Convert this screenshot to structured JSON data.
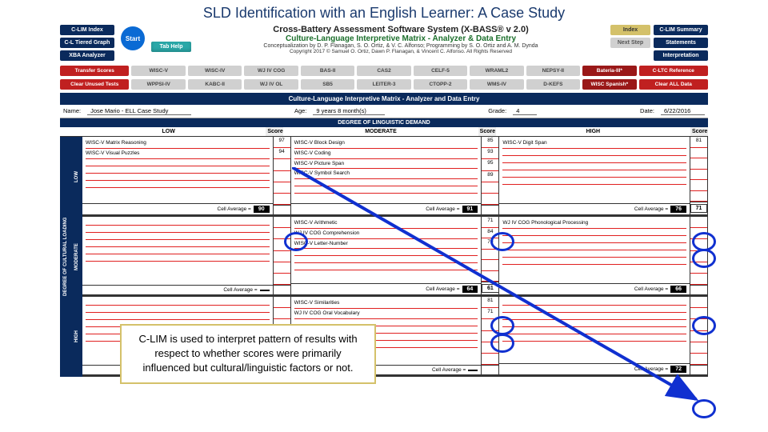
{
  "slide_title": "SLD Identification with an English Learner: A Case Study",
  "nav_left": [
    "C-LIM Index",
    "C-L Tiered Graph",
    "XBA Analyzer"
  ],
  "nav_right": [
    "C-LIM Summary",
    "Statements",
    "Interpretation"
  ],
  "start_label": "Start",
  "tab_help_label": "Tab Help",
  "index_label": "Index",
  "next_step_label": "Next Step",
  "title1": "Cross-Battery Assessment Software System (X-BASS® v 2.0)",
  "title2": "Culture-Language Interpretive Matrix - Analyzer & Data Entry",
  "title3": "Conceptualization by D. P. Flanagan, S. O. Ortiz, & V. C. Alfonso; Programming by S. O. Ortiz and A. M. Dynda",
  "title4": "Copyright 2017 © Samuel O. Ortiz, Dawn P. Flanagan, & Vincent C. Alfonso. All Rights Reserved",
  "row2_left": [
    "Transfer Scores",
    "Clear Unused Tests"
  ],
  "batteries1": [
    "WISC-V",
    "WISC-IV",
    "WJ IV COG",
    "BAS-II",
    "CAS2",
    "CELF-5",
    "WRAML2",
    "NEPSY-II",
    "Bateria-III*"
  ],
  "batteries2": [
    "WPPSI-IV",
    "KABC-II",
    "WJ IV OL",
    "SB5",
    "LEITER-3",
    "CTOPP-2",
    "WMS-IV",
    "D-KEFS",
    "WISC Spanish*"
  ],
  "row2_right": [
    "C-LTC Reference",
    "Clear ALL Data"
  ],
  "section_bar": "Culture-Language Interpretive Matrix - Analyzer and Data Entry",
  "info": {
    "name_lbl": "Name:",
    "name": "Jose Mario - ELL Case Study",
    "age_lbl": "Age:",
    "age": "9 years 8 month(s)",
    "grade_lbl": "Grade:",
    "grade": "4",
    "date_lbl": "Date:",
    "date": "6/22/2016"
  },
  "degree_header": "DEGREE OF LINGUISTIC DEMAND",
  "col_lbls": [
    "LOW",
    "Score",
    "MODERATE",
    "Score",
    "HIGH",
    "Score"
  ],
  "vside": "DEGREE OF CULTURAL LOADING",
  "row_lbls": [
    "LOW",
    "MODERATE",
    "HIGH"
  ],
  "cells": {
    "r0c0": {
      "tests": [
        [
          "WISC-V Matrix Reasoning",
          "97"
        ],
        [
          "WISC-V Visual Puzzles",
          "94"
        ]
      ],
      "avg": "90"
    },
    "r0c1": {
      "tests": [
        [
          "WISC-V Block Design",
          "85"
        ],
        [
          "WISC-V Coding",
          "93"
        ],
        [
          "WISC-V Picture Span",
          "95"
        ],
        [
          "WISC-V Symbol Search",
          "89"
        ]
      ],
      "avg": "91"
    },
    "r0c2": {
      "tests": [
        [
          "WISC-V Digit Span",
          "81"
        ]
      ],
      "avg": "76",
      "score2": "71"
    },
    "r1c0": {
      "tests": [],
      "avg": ""
    },
    "r1c1": {
      "tests": [
        [
          "WISC-V Arithmetic",
          "71"
        ],
        [
          "WJ IV COG Comprehension",
          "84"
        ],
        [
          "WISC-V Letter-Number",
          "70"
        ]
      ],
      "avg": "64",
      "score2": "61"
    },
    "r1c2": {
      "tests": [
        [
          "WJ IV COG Phonological Processing",
          ""
        ]
      ],
      "avg": "66"
    },
    "r2c0": {
      "tests": [],
      "avg": ""
    },
    "r2c1": {
      "tests": [
        [
          "WISC-V Similarities",
          "81"
        ],
        [
          "WJ IV COG Oral Vocabulary",
          "71"
        ]
      ],
      "avg": ""
    },
    "r2c2": {
      "tests": [],
      "avg": "72"
    }
  },
  "cell_avg_lbl": "Cell Average",
  "score_lbl": "Score",
  "callout": "C-LIM is used to interpret pattern of results with respect to whether scores were primarily influenced but cultural/linguistic factors or not."
}
